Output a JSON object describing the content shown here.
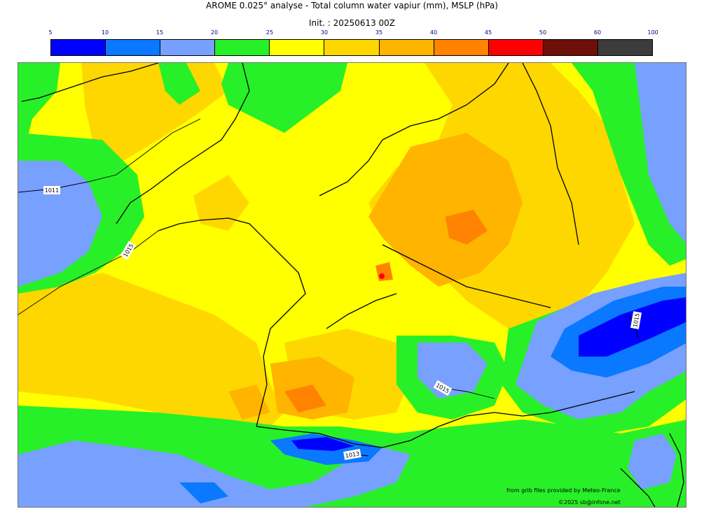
{
  "header": {
    "title_line1": "AROME 0.025° analyse - Total column water vapiur (mm), MSLP (hPa)",
    "title_line2": "Init. : 20250613 00Z"
  },
  "colorbar": {
    "ticks": [
      "5",
      "10",
      "15",
      "20",
      "25",
      "30",
      "35",
      "40",
      "45",
      "50",
      "60",
      "100"
    ],
    "colors": [
      "#0000ff",
      "#0a78ff",
      "#78a0ff",
      "#28f028",
      "#ffff00",
      "#ffd700",
      "#ffb400",
      "#ff8200",
      "#ff0000",
      "#6e0f0a",
      "#3c3c3c"
    ]
  },
  "map": {
    "isobar_labels": [
      "1011",
      "1015",
      "1015",
      "1015",
      "1013"
    ]
  },
  "footer": {
    "credit_source": "from grib files provided by Meteo-France",
    "credit_copyright": "©2025 sb@infone.net"
  }
}
